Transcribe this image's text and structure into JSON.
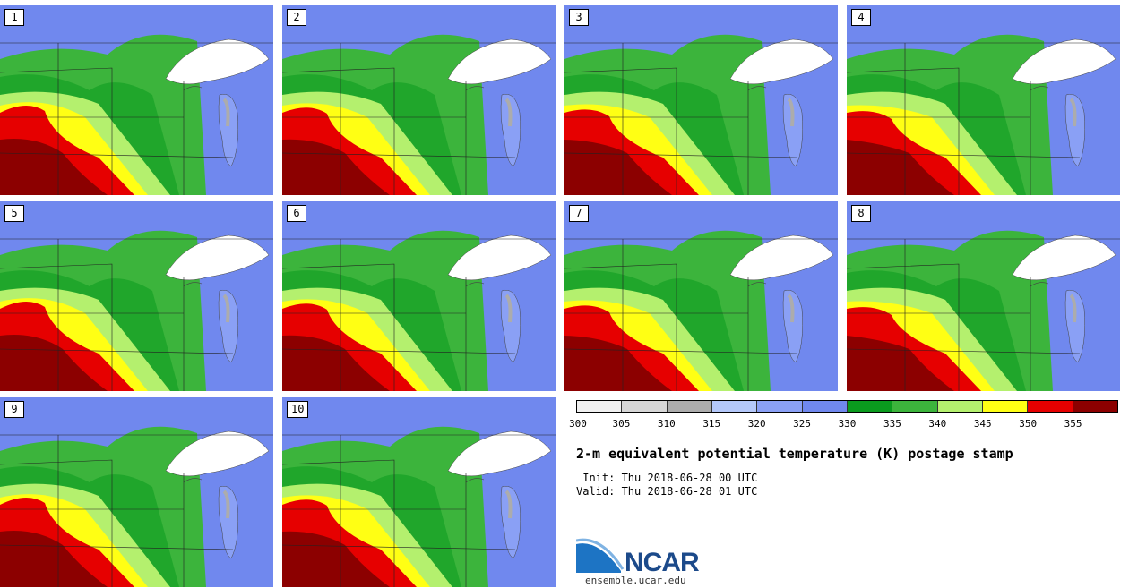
{
  "panels": [
    {
      "label": "1"
    },
    {
      "label": "2"
    },
    {
      "label": "3"
    },
    {
      "label": "4"
    },
    {
      "label": "5"
    },
    {
      "label": "6"
    },
    {
      "label": "7"
    },
    {
      "label": "8"
    },
    {
      "label": "9"
    },
    {
      "label": "10"
    }
  ],
  "colorbar": {
    "colors": [
      "#f0f0f0",
      "#d6d6d6",
      "#acacac",
      "#b4c8fa",
      "#8aa0f5",
      "#7088ee",
      "#0a9b1e",
      "#3cb43c",
      "#b4f06e",
      "#ffff14",
      "#e60000",
      "#8c0000"
    ],
    "ticks": [
      "300",
      "305",
      "310",
      "315",
      "320",
      "325",
      "330",
      "335",
      "340",
      "345",
      "350",
      "355"
    ]
  },
  "title": "2-m equivalent potential temperature (K) postage stamp",
  "init": " Init: Thu 2018-06-28 00 UTC",
  "valid": "Valid: Thu 2018-06-28 01 UTC",
  "logo": {
    "name": "NCAR",
    "url": "ensemble.ucar.edu"
  }
}
